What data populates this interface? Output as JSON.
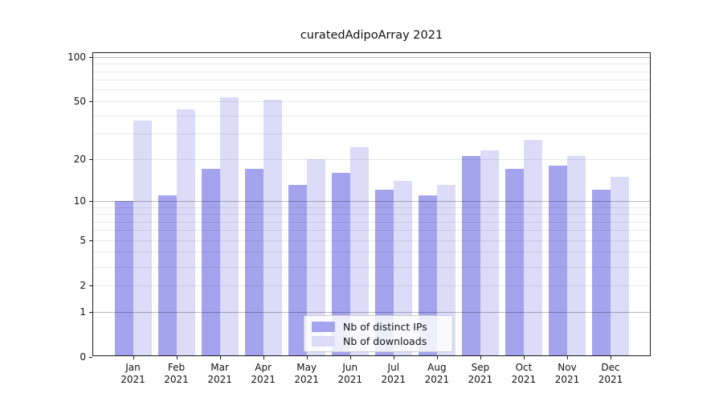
{
  "chart_data": {
    "type": "bar",
    "title": "curatedAdipoArray 2021",
    "categories": [
      "Jan",
      "Feb",
      "Mar",
      "Apr",
      "May",
      "Jun",
      "Jul",
      "Aug",
      "Sep",
      "Oct",
      "Nov",
      "Dec"
    ],
    "category_year": "2021",
    "series": [
      {
        "key": "ips",
        "name": "Nb of distinct IPs",
        "color": "#a4a4ee",
        "values": [
          10,
          11,
          17,
          17,
          13,
          16,
          12,
          11,
          21,
          17,
          18,
          12
        ]
      },
      {
        "key": "downloads",
        "name": "Nb of downloads",
        "color": "#dcdcf9",
        "values": [
          37,
          44,
          53,
          51,
          20,
          24,
          14,
          13,
          23,
          27,
          21,
          15
        ]
      }
    ],
    "xlabel": "",
    "ylabel": "",
    "y_scale": "log1p",
    "ylim": [
      0,
      110
    ],
    "y_ticks": [
      {
        "label": "100",
        "value": 100
      },
      {
        "label": "50",
        "value": 50
      },
      {
        "label": "20",
        "value": 20
      },
      {
        "label": "10",
        "value": 10
      },
      {
        "label": "5",
        "value": 5
      },
      {
        "label": "2",
        "value": 2
      },
      {
        "label": "1",
        "value": 1
      },
      {
        "label": "0",
        "value": 0
      }
    ],
    "grid": "on",
    "grid_minor_values": [
      2,
      3,
      4,
      5,
      6,
      7,
      8,
      9,
      20,
      30,
      40,
      50,
      60,
      70,
      80,
      90
    ],
    "grid_major_values": [
      1,
      10,
      100
    ],
    "legend_position": "bottom-center"
  }
}
